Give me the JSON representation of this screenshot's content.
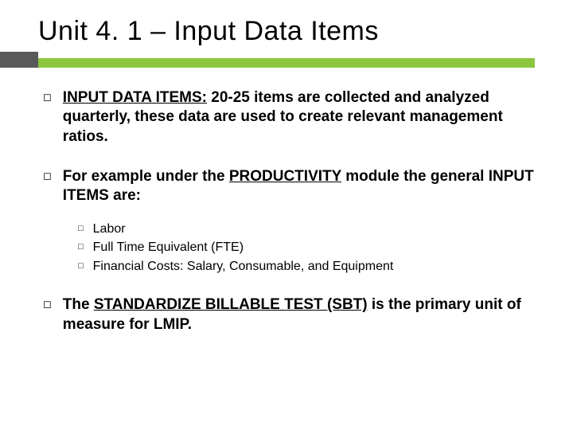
{
  "slide": {
    "title": "Unit 4. 1 – Input Data Items",
    "accent_bar_color": "#8cc63f",
    "accent_block_color": "#595959",
    "background_color": "#ffffff",
    "text_color": "#000000",
    "title_fontsize": 34,
    "body_fontsize": 19,
    "sub_fontsize": 16,
    "bullet_level1_glyph": "◻",
    "bullet_level2_glyph": "□"
  },
  "bullets": [
    {
      "lead_underlined": "INPUT DATA ITEMS:",
      "rest": " 20-25 items are collected and analyzed quarterly, these data are used to create relevant management ratios."
    },
    {
      "pre": "For example under the ",
      "mid_underlined": "PRODUCTIVITY",
      "post": " module the general INPUT ITEMS are:"
    }
  ],
  "subitems": [
    "Labor",
    "Full Time Equivalent (FTE)",
    "Financial Costs: Salary, Consumable, and Equipment"
  ],
  "closing": {
    "pre": "The ",
    "mid_underlined": "STANDARDIZE BILLABLE TEST (SBT)",
    "post": " is the primary unit of measure for LMIP."
  }
}
